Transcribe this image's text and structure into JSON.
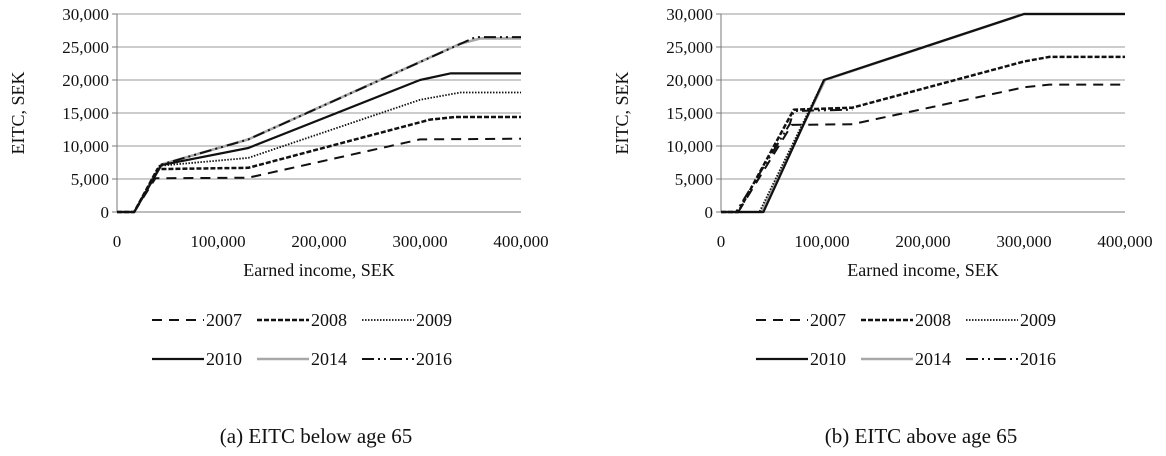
{
  "chart_data": [
    {
      "type": "line",
      "caption": "(a)  EITC below age 65",
      "xlabel": "Earned income, SEK",
      "ylabel": "EITC, SEK",
      "xlim": [
        0,
        400000
      ],
      "ylim": [
        0,
        30000
      ],
      "x_ticks": [
        "0",
        "100,000",
        "200,000",
        "300,000",
        "400,000"
      ],
      "y_ticks": [
        "0",
        "5,000",
        "10,000",
        "15,000",
        "20,000",
        "25,000",
        "30,000"
      ],
      "grid": "horizontal",
      "legend_position": "bottom",
      "series": [
        {
          "name": "2007",
          "points": [
            [
              0,
              0
            ],
            [
              17000,
              0
            ],
            [
              38000,
              5100
            ],
            [
              130000,
              5200
            ],
            [
              300000,
              11000
            ],
            [
              400000,
              11100
            ]
          ]
        },
        {
          "name": "2008",
          "points": [
            [
              0,
              0
            ],
            [
              17000,
              0
            ],
            [
              40000,
              6500
            ],
            [
              130000,
              6700
            ],
            [
              310000,
              14000
            ],
            [
              335000,
              14400
            ],
            [
              400000,
              14400
            ]
          ]
        },
        {
          "name": "2009",
          "points": [
            [
              0,
              0
            ],
            [
              17000,
              0
            ],
            [
              42000,
              7000
            ],
            [
              130000,
              8200
            ],
            [
              300000,
              17000
            ],
            [
              340000,
              18100
            ],
            [
              400000,
              18100
            ]
          ]
        },
        {
          "name": "2010",
          "points": [
            [
              0,
              0
            ],
            [
              17000,
              0
            ],
            [
              44000,
              7100
            ],
            [
              130000,
              9700
            ],
            [
              300000,
              20000
            ],
            [
              330000,
              21000
            ],
            [
              400000,
              21000
            ]
          ]
        },
        {
          "name": "2014",
          "points": [
            [
              0,
              0
            ],
            [
              17000,
              0
            ],
            [
              44000,
              7200
            ],
            [
              130000,
              11000
            ],
            [
              340000,
              25500
            ],
            [
              360000,
              26300
            ],
            [
              400000,
              26300
            ]
          ]
        },
        {
          "name": "2016",
          "points": [
            [
              0,
              0
            ],
            [
              17000,
              0
            ],
            [
              44000,
              7200
            ],
            [
              130000,
              11000
            ],
            [
              355000,
              26500
            ],
            [
              400000,
              26500
            ]
          ]
        }
      ]
    },
    {
      "type": "line",
      "caption": "(b) EITC above age 65",
      "xlabel": "Earned income, SEK",
      "ylabel": "EITC, SEK",
      "xlim": [
        0,
        400000
      ],
      "ylim": [
        0,
        30000
      ],
      "x_ticks": [
        "0",
        "100,000",
        "200,000",
        "300,000",
        "400,000"
      ],
      "y_ticks": [
        "0",
        "5,000",
        "10,000",
        "15,000",
        "20,000",
        "25,000",
        "30,000"
      ],
      "grid": "horizontal",
      "legend_position": "bottom",
      "series": [
        {
          "name": "2007",
          "points": [
            [
              0,
              0
            ],
            [
              17000,
              0
            ],
            [
              70000,
              13200
            ],
            [
              130000,
              13300
            ],
            [
              300000,
              18900
            ],
            [
              325000,
              19300
            ],
            [
              400000,
              19300
            ]
          ]
        },
        {
          "name": "2008",
          "points": [
            [
              0,
              0
            ],
            [
              17000,
              0
            ],
            [
              72000,
              15500
            ],
            [
              130000,
              15800
            ],
            [
              300000,
              22800
            ],
            [
              325000,
              23500
            ],
            [
              400000,
              23500
            ]
          ]
        },
        {
          "name": "2009",
          "points": [
            [
              0,
              0
            ],
            [
              38000,
              0
            ],
            [
              102000,
              20000
            ],
            [
              300000,
              30000
            ],
            [
              400000,
              30000
            ]
          ]
        },
        {
          "name": "2010",
          "points": [
            [
              0,
              0
            ],
            [
              42000,
              0
            ],
            [
              102000,
              20000
            ],
            [
              300000,
              30000
            ],
            [
              400000,
              30000
            ]
          ]
        },
        {
          "name": "2014",
          "points": [
            [
              0,
              0
            ],
            [
              40000,
              0
            ],
            [
              103000,
              20000
            ],
            [
              300000,
              30000
            ],
            [
              400000,
              30000
            ]
          ]
        },
        {
          "name": "2016",
          "points": [
            [
              0,
              0
            ],
            [
              15000,
              0
            ],
            [
              68000,
              13300
            ],
            [
              72000,
              15300
            ],
            [
              130000,
              15500
            ]
          ]
        }
      ]
    }
  ],
  "styles": {
    "2007": {
      "stroke": "#111111",
      "dash": "10 7",
      "width": 2
    },
    "2008": {
      "stroke": "#111111",
      "dash": "5 2",
      "width": 2.5
    },
    "2009": {
      "stroke": "#111111",
      "dash": "1.5 1.5",
      "width": 1.8
    },
    "2010": {
      "stroke": "#111111",
      "dash": "",
      "width": 2.2
    },
    "2014": {
      "stroke": "#a8a8a8",
      "dash": "",
      "width": 2.6
    },
    "2016": {
      "stroke": "#111111",
      "dash": "12 4 2 4 2 4",
      "width": 2
    }
  },
  "colors": {
    "grid": "#9a9a9a",
    "axis": "#7a7a7a"
  }
}
